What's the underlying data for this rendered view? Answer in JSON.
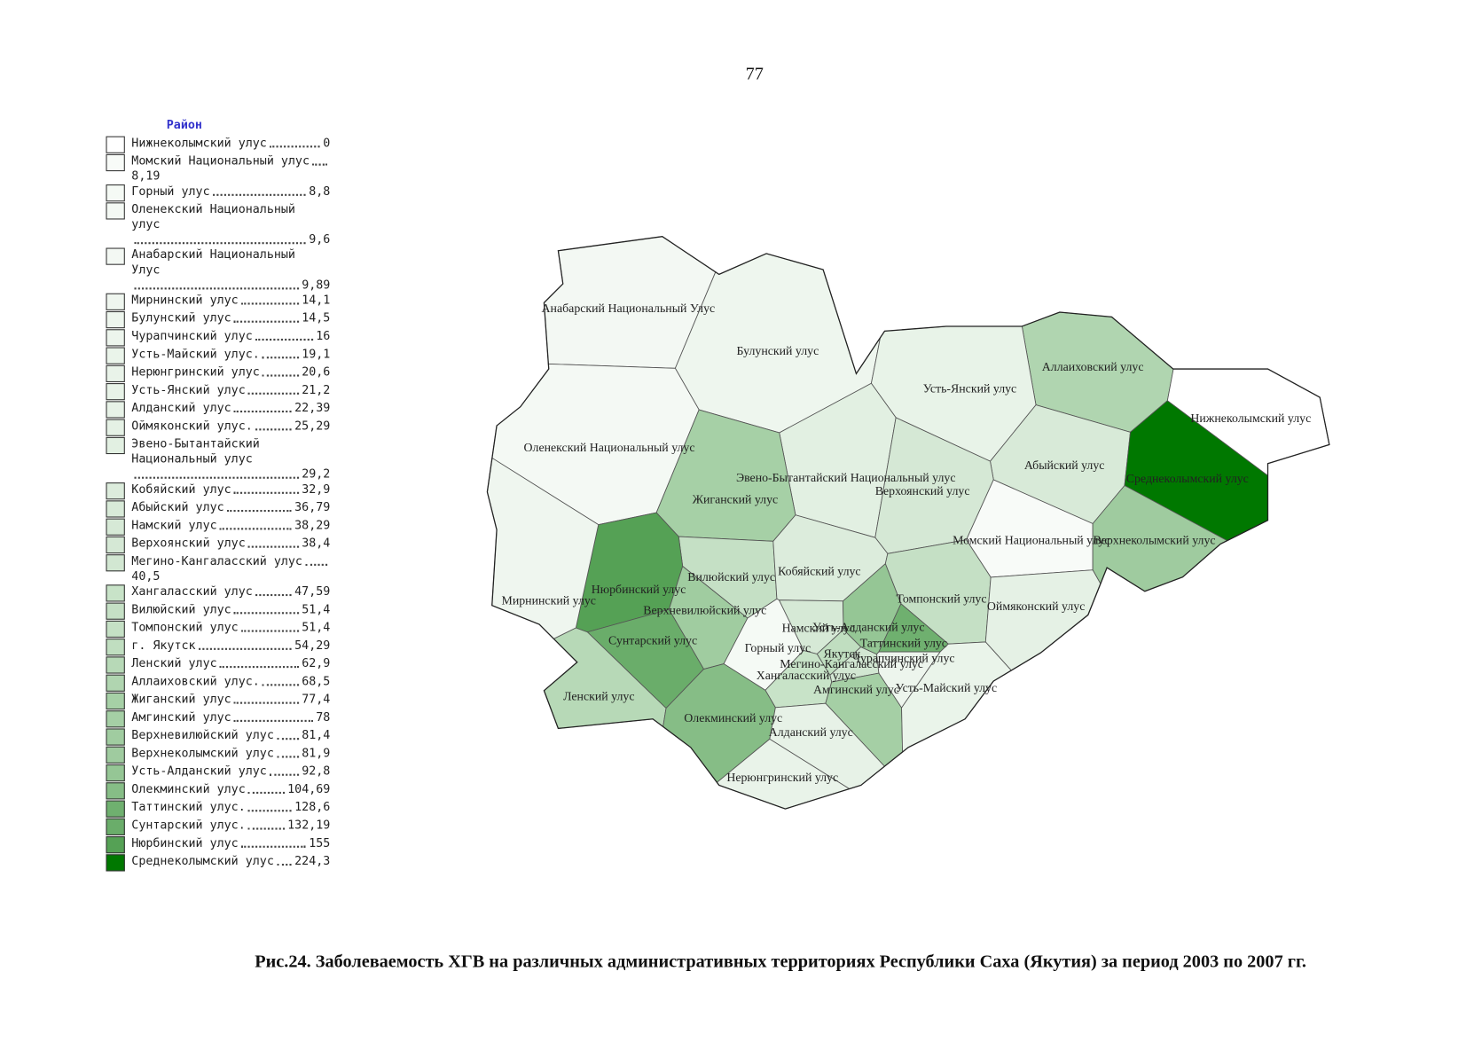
{
  "page_number": "77",
  "legend": {
    "title": "Район",
    "items": [
      {
        "name": "Нижнеколымский улус",
        "value": "0",
        "color": "#ffffff"
      },
      {
        "name": "Момский Национальный улус",
        "value": "8,19",
        "color": "#f8fbf8"
      },
      {
        "name": "Горный улус",
        "value": "8,8",
        "color": "#f5faf5"
      },
      {
        "name": "Оленекский Национальный улус",
        "value": "9,6",
        "color": "#f4f9f4"
      },
      {
        "name": "Анабарский Национальный Улус",
        "value": "9,89",
        "color": "#f3f8f3"
      },
      {
        "name": "Мирнинский улус",
        "value": "14,1",
        "color": "#eff6ef"
      },
      {
        "name": "Булунский улус",
        "value": "14,5",
        "color": "#eef6ee"
      },
      {
        "name": "Чурапчинский улус",
        "value": "16",
        "color": "#edf5ed"
      },
      {
        "name": "Усть-Майский улус.",
        "value": "19,1",
        "color": "#eaf4ea"
      },
      {
        "name": "Нерюнгринский улус",
        "value": "20,6",
        "color": "#e9f3e9"
      },
      {
        "name": "Усть-Янский улус",
        "value": "21,2",
        "color": "#e8f3e8"
      },
      {
        "name": "Алданский улус",
        "value": "22,39",
        "color": "#e7f2e7"
      },
      {
        "name": "Оймяконский улус.",
        "value": "25,29",
        "color": "#e5f1e5"
      },
      {
        "name": "Эвено-Бытантайский Национальный улус",
        "value": "29,2",
        "color": "#e2f0e2"
      },
      {
        "name": "Кобяйский улус",
        "value": "32,9",
        "color": "#dcecdc"
      },
      {
        "name": "Абыйский улус",
        "value": "36,79",
        "color": "#d8ead8"
      },
      {
        "name": "Намский улус",
        "value": "38,29",
        "color": "#d6e9d6"
      },
      {
        "name": "Верхоянский улус",
        "value": "38,4",
        "color": "#d5e8d5"
      },
      {
        "name": "Мегино-Кангаласский улус",
        "value": "40,5",
        "color": "#d2e7d2"
      },
      {
        "name": "Хангаласский улус",
        "value": "47,59",
        "color": "#c8e3c8"
      },
      {
        "name": "Вилюйский улус",
        "value": "51,4",
        "color": "#c5e0c5"
      },
      {
        "name": "Томпонский улус",
        "value": "51,4",
        "color": "#c5e0c5"
      },
      {
        "name": "г. Якутск",
        "value": "54,29",
        "color": "#c0dec0"
      },
      {
        "name": "Ленский улус",
        "value": "62,9",
        "color": "#b7d9b7"
      },
      {
        "name": "Аллаиховский улус.",
        "value": "68,5",
        "color": "#b0d5b0"
      },
      {
        "name": "Жиганский улус",
        "value": "77,4",
        "color": "#a6d0a6"
      },
      {
        "name": "Амгинский улус",
        "value": "78",
        "color": "#a5cfa5"
      },
      {
        "name": "Верхневилюйский улус",
        "value": "81,4",
        "color": "#a0cca0"
      },
      {
        "name": "Верхнеколымский улус",
        "value": "81,9",
        "color": "#9fcb9f"
      },
      {
        "name": "Усть-Алданский улус",
        "value": "92,8",
        "color": "#95c695"
      },
      {
        "name": "Олекминский улус",
        "value": "104,69",
        "color": "#86bd86"
      },
      {
        "name": "Таттинский улус.",
        "value": "128,6",
        "color": "#6fb06f"
      },
      {
        "name": "Сунтарский улус.",
        "value": "132,19",
        "color": "#6aad6a"
      },
      {
        "name": "Нюрбинский улус",
        "value": "155",
        "color": "#55a155"
      },
      {
        "name": "Среднеколымский улус",
        "value": "224,3",
        "color": "#007800"
      }
    ]
  },
  "map": {
    "regions": [
      {
        "label": "Анабарский Национальный Улус"
      },
      {
        "label": "Булунский улус"
      },
      {
        "label": "Аллаиховский улус"
      },
      {
        "label": "Усть-Янский улус"
      },
      {
        "label": "Нижнеколымский улус"
      },
      {
        "label": "Оленекский Национальный улус"
      },
      {
        "label": "Эвено-Бытантайский Национальный улус"
      },
      {
        "label": "Абыйский улус"
      },
      {
        "label": "Среднеколымский улус"
      },
      {
        "label": "Жиганский улус"
      },
      {
        "label": "Верхоянский улус"
      },
      {
        "label": "Момский Национальный улус"
      },
      {
        "label": "Верхнеколымский улус"
      },
      {
        "label": "Вилюйский улус"
      },
      {
        "label": "Кобяйский улус"
      },
      {
        "label": "Нюрбинский улус"
      },
      {
        "label": "Верхневилюйский улус"
      },
      {
        "label": "Мирнинский улус"
      },
      {
        "label": "Томпонский улус"
      },
      {
        "label": "Оймяконский улус"
      },
      {
        "label": "Намский улус"
      },
      {
        "label": "Усть-Алданский улус"
      },
      {
        "label": "Сунтарский улус"
      },
      {
        "label": "Горный улус"
      },
      {
        "label": "Таттинский улус"
      },
      {
        "label": "Якутск"
      },
      {
        "label": "Чурапчинский улус"
      },
      {
        "label": "Мегино-Кангаласский улус"
      },
      {
        "label": "Хангаласский улус"
      },
      {
        "label": "Амгинский улус"
      },
      {
        "label": "Усть-Майский улус"
      },
      {
        "label": "Ленский улус"
      },
      {
        "label": "Олекминский улус"
      },
      {
        "label": "Алданский улус"
      },
      {
        "label": "Нерюнгринский улус"
      }
    ]
  },
  "caption": "Рис.24. Заболеваемость ХГВ на различных административных территориях Республики Саха (Якутия) за период 2003 по 2007 гг."
}
